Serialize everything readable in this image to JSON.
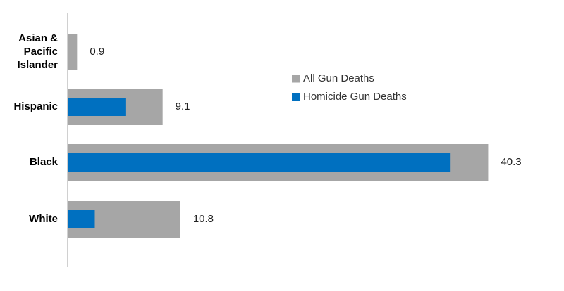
{
  "chart_data": {
    "type": "bar",
    "orientation": "horizontal",
    "categories": [
      "Asian & Pacific Islander",
      "Hispanic",
      "Black",
      "White"
    ],
    "category_label_lines": [
      [
        "Asian &",
        "Pacific",
        "Islander"
      ],
      [
        "Hispanic"
      ],
      [
        "Black"
      ],
      [
        "White"
      ]
    ],
    "series": [
      {
        "name": "All Gun Deaths",
        "values": [
          0.9,
          9.1,
          40.3,
          10.8
        ],
        "color": "#a6a6a6"
      },
      {
        "name": "Homicide Gun Deaths",
        "values": [
          0,
          5.6,
          36.7,
          2.6
        ],
        "color": "#0070c0"
      }
    ],
    "data_labels": [
      "0.9",
      "9.1",
      "40.3",
      "10.8"
    ],
    "xlim": [
      0,
      42
    ],
    "grid": false,
    "legend_position": "center-right",
    "title": "",
    "xlabel": "",
    "ylabel": ""
  }
}
